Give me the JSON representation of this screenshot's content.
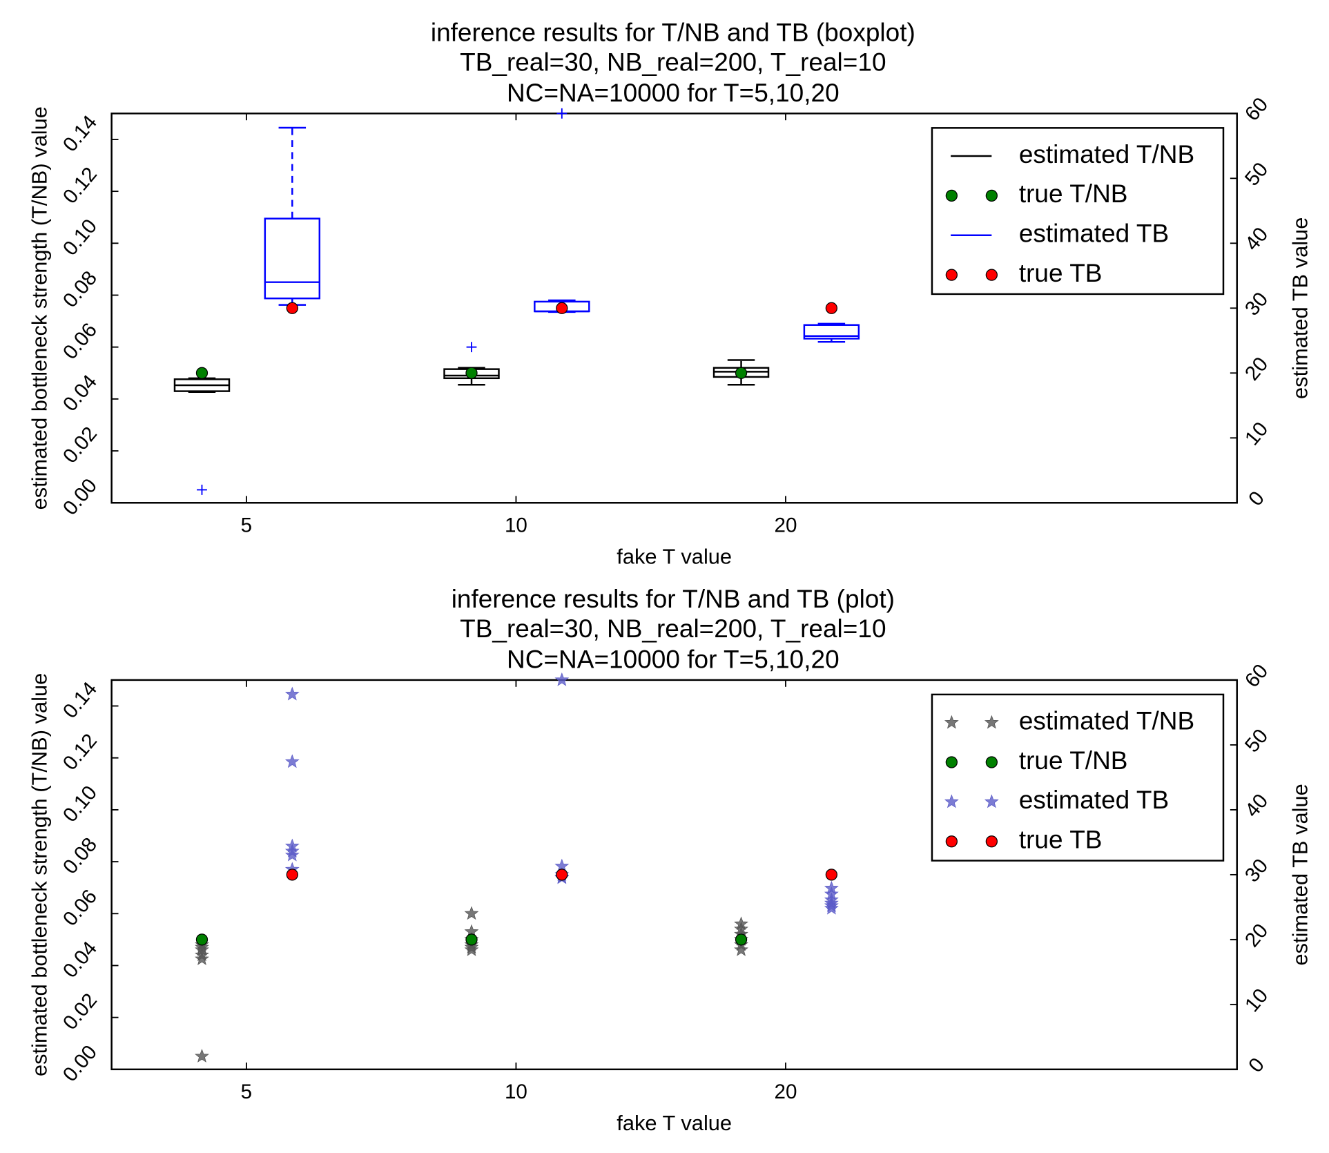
{
  "chart_data": [
    {
      "type": "boxplot",
      "title": "inference results for T/NB and TB (boxplot)",
      "subtitle": [
        "TB_real=30, NB_real=200, T_real=10",
        "NC=NA=10000 for T=5,10,20"
      ],
      "xlabel": "fake T value",
      "ylabel": "estimated bottleneck strength (T/NB) value",
      "y2label": "estimated TB value",
      "xlim": [
        0.5,
        4.674
      ],
      "xticks": [
        {
          "value": 1,
          "label": "5"
        },
        {
          "value": 2,
          "label": "10"
        },
        {
          "value": 3,
          "label": "20"
        }
      ],
      "ylim": [
        0,
        0.15
      ],
      "yticks": [
        {
          "value": 0,
          "label": "0.00"
        },
        {
          "value": 0.02,
          "label": "0.02"
        },
        {
          "value": 0.04,
          "label": "0.04"
        },
        {
          "value": 0.06,
          "label": "0.06"
        },
        {
          "value": 0.08,
          "label": "0.08"
        },
        {
          "value": 0.1,
          "label": "0.10"
        },
        {
          "value": 0.12,
          "label": "0.12"
        },
        {
          "value": 0.14,
          "label": "0.14"
        }
      ],
      "y2lim": [
        0,
        60
      ],
      "y2ticks": [
        0,
        10,
        20,
        30,
        40,
        50,
        60
      ],
      "legend": "upper right",
      "flier_color": "#0000ff",
      "series": [
        {
          "name": "estimated T/NB",
          "type": "box",
          "color": "#000000",
          "x": [
            0.835,
            1.835,
            2.835
          ],
          "whislo": [
            0.0427,
            0.0455,
            0.0455
          ],
          "q1": [
            0.043,
            0.048,
            0.0485
          ],
          "med": [
            0.0453,
            0.049,
            0.0505
          ],
          "q3": [
            0.0476,
            0.0515,
            0.052
          ],
          "whishi": [
            0.048,
            0.052,
            0.055
          ],
          "fliers": [
            [
              0.005
            ],
            [
              0.06
            ],
            []
          ]
        },
        {
          "name": "true T/NB",
          "type": "scatter",
          "marker": "o",
          "color": "#008000",
          "x": [
            0.835,
            1.835,
            2.835
          ],
          "values": [
            0.05,
            0.05,
            0.05
          ]
        },
        {
          "name": "estimated TB",
          "type": "box",
          "color": "#0000ff",
          "axis": "y2",
          "x": [
            1.17,
            2.17,
            3.17
          ],
          "whislo": [
            30.5,
            29.4,
            24.8
          ],
          "q1": [
            31.5,
            29.5,
            25.3
          ],
          "med": [
            34,
            29.5,
            25.7
          ],
          "q3": [
            43.8,
            31,
            27.4
          ],
          "whishi": [
            57.8,
            31.2,
            27.6
          ],
          "fliers": [
            [],
            [
              60
            ],
            []
          ]
        },
        {
          "name": "true TB",
          "type": "scatter",
          "marker": "o",
          "color": "#ff0000",
          "axis": "y2",
          "x": [
            1.17,
            2.17,
            3.17
          ],
          "values": [
            30,
            30,
            30
          ]
        }
      ]
    },
    {
      "type": "scatter",
      "title": "inference results for T/NB and TB (plot)",
      "subtitle": [
        "TB_real=30, NB_real=200, T_real=10",
        "NC=NA=10000 for T=5,10,20"
      ],
      "xlabel": "fake T value",
      "ylabel": "estimated bottleneck strength (T/NB) value",
      "y2label": "estimated TB value",
      "xlim": [
        0.5,
        4.674
      ],
      "xticks": [
        {
          "value": 1,
          "label": "5"
        },
        {
          "value": 2,
          "label": "10"
        },
        {
          "value": 3,
          "label": "20"
        }
      ],
      "ylim": [
        0,
        0.15
      ],
      "yticks": [
        {
          "value": 0,
          "label": "0.00"
        },
        {
          "value": 0.02,
          "label": "0.02"
        },
        {
          "value": 0.04,
          "label": "0.04"
        },
        {
          "value": 0.06,
          "label": "0.06"
        },
        {
          "value": 0.08,
          "label": "0.08"
        },
        {
          "value": 0.1,
          "label": "0.10"
        },
        {
          "value": 0.12,
          "label": "0.12"
        },
        {
          "value": 0.14,
          "label": "0.14"
        }
      ],
      "y2lim": [
        0,
        60
      ],
      "y2ticks": [
        0,
        10,
        20,
        30,
        40,
        50,
        60
      ],
      "legend": "upper right",
      "series": [
        {
          "name": "estimated T/NB",
          "type": "scatter",
          "marker": "*",
          "color": "#555555",
          "x": [
            0.835,
            0.835,
            0.835,
            0.835,
            0.835,
            0.835,
            1.835,
            1.835,
            1.835,
            1.835,
            1.835,
            1.835,
            2.835,
            2.835,
            2.835,
            2.835,
            2.835,
            2.835
          ],
          "values": [
            0.048,
            0.047,
            0.046,
            0.044,
            0.0425,
            0.005,
            0.06,
            0.053,
            0.05,
            0.048,
            0.047,
            0.046,
            0.056,
            0.054,
            0.052,
            0.05,
            0.048,
            0.046
          ]
        },
        {
          "name": "true T/NB",
          "type": "scatter",
          "marker": "o",
          "color": "#008000",
          "x": [
            0.835,
            1.835,
            2.835
          ],
          "values": [
            0.05,
            0.05,
            0.05
          ]
        },
        {
          "name": "estimated TB",
          "type": "scatter",
          "marker": "*",
          "color": "#5b5bc8",
          "axis": "y2",
          "x": [
            1.17,
            1.17,
            1.17,
            1.17,
            1.17,
            1.17,
            2.17,
            2.17,
            2.17,
            2.17,
            2.17,
            3.17,
            3.17,
            3.17,
            3.17,
            3.17,
            3.17
          ],
          "values": [
            57.8,
            47.4,
            34.4,
            33.6,
            33.0,
            30.8,
            60,
            31.3,
            30,
            29.6,
            29.5,
            27.9,
            27.0,
            26.1,
            25.6,
            25.2,
            24.8
          ]
        },
        {
          "name": "true TB",
          "type": "scatter",
          "marker": "o",
          "color": "#ff0000",
          "axis": "y2",
          "x": [
            1.17,
            2.17,
            3.17
          ],
          "values": [
            30,
            30,
            30
          ]
        }
      ]
    }
  ]
}
